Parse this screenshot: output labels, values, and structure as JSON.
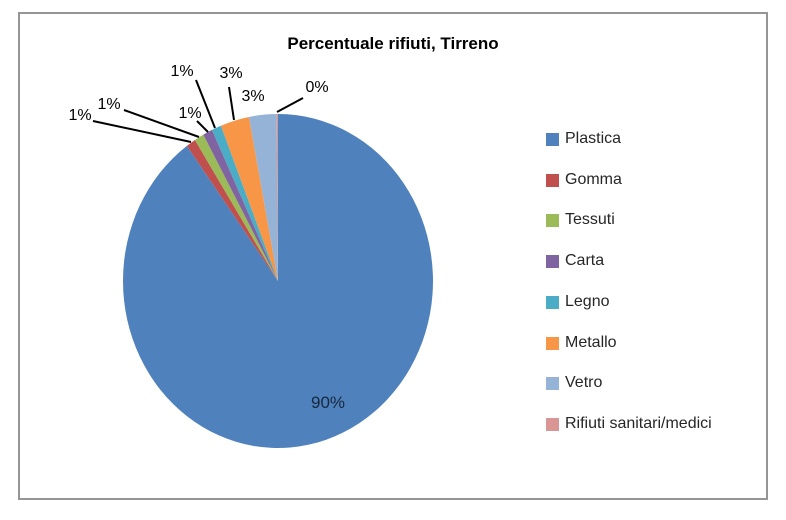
{
  "chart_data": {
    "type": "pie",
    "title": "Percentuale rifiuti, Tirreno",
    "legend_position": "right",
    "direction": "clockwise",
    "start_angle_deg": 0,
    "categories": [
      "Plastica",
      "Gomma",
      "Tessuti",
      "Carta",
      "Legno",
      "Metallo",
      "Vetro",
      "Rifiuti sanitari/medici"
    ],
    "values": [
      90,
      1,
      1,
      1,
      1,
      3,
      3,
      0
    ],
    "labels": [
      "90%",
      "1%",
      "1%",
      "1%",
      "1%",
      "3%",
      "3%",
      "0%"
    ],
    "colors": [
      "#4F81BD",
      "#C0504D",
      "#9BBB59",
      "#8064A2",
      "#4BACC6",
      "#F79646",
      "#95B3D7",
      "#D99694"
    ],
    "leader_line_color": "#000000",
    "label_color_outside": "#000000",
    "label_color_inside": "#17293e",
    "frame_border_color": "#959595",
    "background_color": "#ffffff"
  }
}
